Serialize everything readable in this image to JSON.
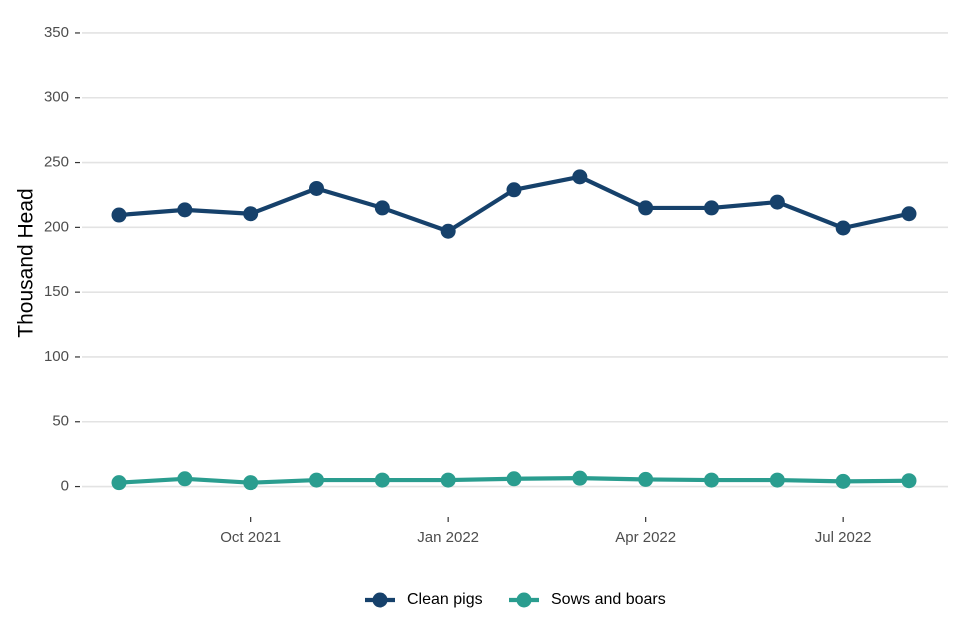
{
  "chart_data": {
    "type": "line",
    "ylabel": "Thousand Head",
    "xlabel": "",
    "ylim": [
      -15,
      360
    ],
    "yticks": [
      0,
      50,
      100,
      150,
      200,
      250,
      300,
      350
    ],
    "x": [
      "2021-08",
      "2021-09",
      "2021-10",
      "2021-11",
      "2021-12",
      "2022-01",
      "2022-02",
      "2022-03",
      "2022-04",
      "2022-05",
      "2022-06",
      "2022-07",
      "2022-08"
    ],
    "xtick_labels": [
      {
        "at": "2021-10",
        "label": "Oct 2021"
      },
      {
        "at": "2022-01",
        "label": "Jan 2022"
      },
      {
        "at": "2022-04",
        "label": "Apr 2022"
      },
      {
        "at": "2022-07",
        "label": "Jul 2022"
      }
    ],
    "grid": true,
    "legend_position": "bottom",
    "series": [
      {
        "name": "Clean pigs",
        "color": "#16416b",
        "values": [
          209.5,
          213.5,
          210.5,
          230,
          215,
          197,
          229,
          239,
          215,
          215,
          219.5,
          199.5,
          210.5
        ]
      },
      {
        "name": "Sows and boars",
        "color": "#2a9d8f",
        "values": [
          3,
          6,
          3,
          5,
          5,
          5,
          6,
          6.5,
          5.5,
          5,
          5,
          4,
          4.5
        ]
      }
    ]
  }
}
